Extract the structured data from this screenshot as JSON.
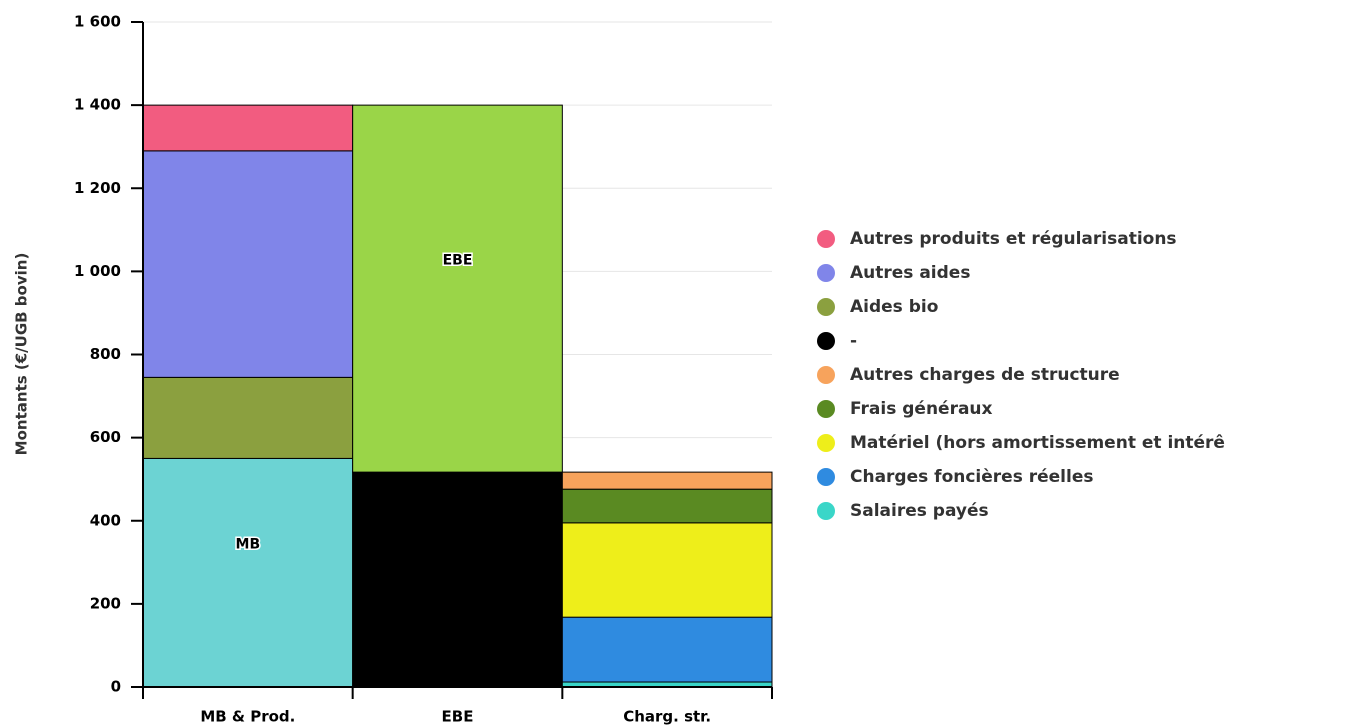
{
  "chart_data": {
    "type": "stacked_bar",
    "y_label": "Montants (€/UGB bovin)",
    "categories": [
      "MB & Prod.",
      "EBE",
      "Charg. str."
    ],
    "series": [
      {
        "name": "Autres produits et régularisations",
        "color": "#f25c80",
        "values": [
          110,
          null,
          null
        ]
      },
      {
        "name": "Autres aides",
        "color": "#8085e9",
        "values": [
          545,
          null,
          null
        ]
      },
      {
        "name": "Aides bio",
        "color": "#8ba03f",
        "values": [
          195,
          null,
          null
        ]
      },
      {
        "name": "MB",
        "color": "#6cd3d3",
        "legend": false,
        "values": [
          550,
          null,
          null
        ]
      },
      {
        "name": "EBE",
        "color": "#9ad548",
        "legend": false,
        "values": [
          null,
          883,
          null
        ]
      },
      {
        "name": "-",
        "color": "#000000",
        "values": [
          null,
          517,
          null
        ]
      },
      {
        "name": "Autres charges de structure",
        "color": "#f7a35c",
        "values": [
          null,
          null,
          41
        ]
      },
      {
        "name": "Frais généraux",
        "color": "#5a8a22",
        "values": [
          null,
          null,
          81
        ]
      },
      {
        "name": "Matériel (hors amortissement et intérê",
        "color": "#eeee1a",
        "values": [
          null,
          null,
          227
        ]
      },
      {
        "name": "Charges foncières réelles",
        "color": "#2f8be0",
        "values": [
          null,
          null,
          156
        ]
      },
      {
        "name": "Salaires payés",
        "color": "#3ad6c8",
        "values": [
          null,
          null,
          12
        ]
      }
    ],
    "ylim": [
      0,
      1600
    ],
    "yticks": [
      0,
      200,
      400,
      600,
      800,
      {
        "value": 1000,
        "label": "1 000"
      },
      {
        "value": 1200,
        "label": "1 200"
      },
      {
        "value": 1400,
        "label": "1 400"
      },
      {
        "value": 1600,
        "label": "1 600"
      }
    ],
    "grid": true,
    "legend": "right"
  }
}
